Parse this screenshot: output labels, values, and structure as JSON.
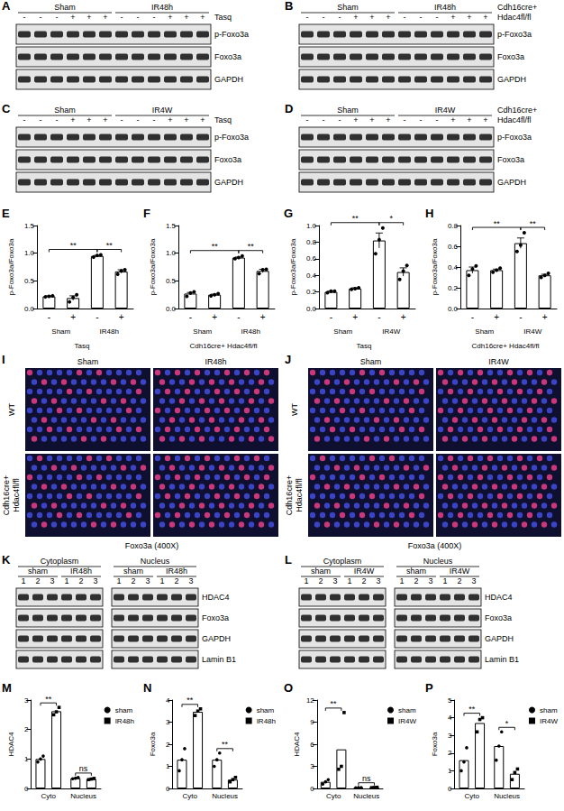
{
  "panels": [
    {
      "panel": "A",
      "type": "blot",
      "groups": [
        "Sham",
        "IR48h"
      ],
      "signs": [
        "-",
        "-",
        "-",
        "+",
        "+",
        "+",
        "-",
        "-",
        "-",
        "+",
        "+",
        "+"
      ],
      "treatment": "Tasq",
      "bands": [
        "p-Foxo3a",
        "Foxo3a",
        "GAPDH"
      ]
    },
    {
      "panel": "B",
      "type": "blot",
      "groups": [
        "Sham",
        "IR48h"
      ],
      "signs": [
        "-",
        "-",
        "-",
        "+",
        "+",
        "+",
        "-",
        "-",
        "-",
        "+",
        "+",
        "+"
      ],
      "treatment": "Cdh16cre+ Hdac4fl/fl",
      "bands": [
        "p-Foxo3a",
        "Foxo3a",
        "GAPDH"
      ]
    },
    {
      "panel": "C",
      "type": "blot",
      "groups": [
        "Sham",
        "IR4W"
      ],
      "signs": [
        "-",
        "-",
        "-",
        "+",
        "+",
        "+",
        "-",
        "-",
        "-",
        "+",
        "+",
        "+"
      ],
      "treatment": "Tasq",
      "bands": [
        "p-Foxo3a",
        "Foxo3a",
        "GAPDH"
      ]
    },
    {
      "panel": "D",
      "type": "blot",
      "groups": [
        "Sham",
        "IR4W"
      ],
      "signs": [
        "-",
        "-",
        "-",
        "+",
        "+",
        "+",
        "-",
        "-",
        "-",
        "+",
        "+",
        "+"
      ],
      "treatment": "Cdh16cre+ Hdac4fl/fl",
      "bands": [
        "p-Foxo3a",
        "Foxo3a",
        "GAPDH"
      ]
    },
    {
      "panel": "I",
      "type": "image_grid",
      "columns": [
        "Sham",
        "IR48h"
      ],
      "rows": [
        "WT",
        "Cdh16cre+ Hdac4fl/fl"
      ],
      "caption": "Foxo3a (400X)"
    },
    {
      "panel": "J",
      "type": "image_grid",
      "columns": [
        "Sham",
        "IR4W"
      ],
      "rows": [
        "WT",
        "Cdh16cre+ Hdac4fl/fl"
      ],
      "caption": "Foxo3a (400X)"
    },
    {
      "panel": "K",
      "type": "blot",
      "compartments": [
        "Cytoplasm",
        "Nucleus"
      ],
      "groups": [
        "sham",
        "IR48h",
        "sham",
        "IR48h"
      ],
      "lanes": [
        1,
        2,
        3,
        1,
        2,
        3,
        1,
        2,
        3,
        1,
        2,
        3
      ],
      "bands": [
        "HDAC4",
        "Foxo3a",
        "GAPDH",
        "Lamin B1"
      ]
    },
    {
      "panel": "L",
      "type": "blot",
      "compartments": [
        "Cytoplasm",
        "Nucleus"
      ],
      "groups": [
        "sham",
        "IR4W",
        "sham",
        "IR4W"
      ],
      "lanes": [
        1,
        2,
        3,
        1,
        2,
        3,
        1,
        2,
        3,
        1,
        2,
        3
      ],
      "bands": [
        "HDAC4",
        "Foxo3a",
        "GAPDH",
        "Lamin B1"
      ]
    }
  ],
  "chart_data": [
    {
      "panel": "E",
      "type": "bar",
      "ylabel": "p-Foxo3a/Foxo3a",
      "categories": [
        "-",
        "+",
        "-",
        "+"
      ],
      "groups": [
        "Sham",
        "IR48h"
      ],
      "treatment": "Tasq",
      "values": [
        0.22,
        0.19,
        0.95,
        0.67
      ],
      "errors": [
        0.01,
        0.04,
        0.01,
        0.03
      ],
      "points": [
        [
          0.21,
          0.22,
          0.23
        ],
        [
          0.12,
          0.2,
          0.25
        ],
        [
          0.93,
          0.96,
          0.97
        ],
        [
          0.62,
          0.68,
          0.7
        ]
      ],
      "marker": "circle",
      "color": "#ffffff",
      "ylim": [
        0,
        1.5
      ],
      "yticks": [
        {
          "value": 0,
          "label": "0.0"
        },
        {
          "value": 0.5,
          "label": "0.5"
        },
        {
          "value": 1,
          "label": "1.0"
        },
        {
          "value": 1.5,
          "label": "1.5"
        }
      ],
      "significance": [
        {
          "from": 0,
          "to": 2,
          "label": "**"
        },
        {
          "from": 2,
          "to": 3,
          "label": "**"
        }
      ],
      "grid": false
    },
    {
      "panel": "F",
      "type": "bar",
      "ylabel": "p-Foxo3a/Foxo3a",
      "categories": [
        "-",
        "+",
        "-",
        "+"
      ],
      "groups": [
        "Sham",
        "IR48h"
      ],
      "treatment": "Cdh16cre+ Hdac4fl/fl",
      "values": [
        0.27,
        0.25,
        0.92,
        0.68
      ],
      "errors": [
        0.02,
        0.01,
        0.01,
        0.03
      ],
      "points": [
        [
          0.22,
          0.28,
          0.3
        ],
        [
          0.23,
          0.25,
          0.27
        ],
        [
          0.9,
          0.92,
          0.95
        ],
        [
          0.63,
          0.7,
          0.71
        ]
      ],
      "marker": "circle",
      "color": "#ffffff",
      "ylim": [
        0,
        1.5
      ],
      "yticks": [
        {
          "value": 0,
          "label": "0.0"
        },
        {
          "value": 0.5,
          "label": "0.5"
        },
        {
          "value": 1,
          "label": "1.0"
        },
        {
          "value": 1.5,
          "label": "1.5"
        }
      ],
      "significance": [
        {
          "from": 0,
          "to": 2,
          "label": "**"
        },
        {
          "from": 2,
          "to": 3,
          "label": "**"
        }
      ],
      "grid": false
    },
    {
      "panel": "G",
      "type": "bar",
      "ylabel": "p-Foxo3a/Foxo3a",
      "categories": [
        "-",
        "+",
        "-",
        "+"
      ],
      "groups": [
        "Sham",
        "IR4W"
      ],
      "treatment": "Tasq",
      "values": [
        0.2,
        0.24,
        0.82,
        0.44
      ],
      "errors": [
        0.01,
        0.01,
        0.09,
        0.05
      ],
      "points": [
        [
          0.19,
          0.21,
          0.21
        ],
        [
          0.23,
          0.24,
          0.25
        ],
        [
          0.66,
          0.83,
          0.97
        ],
        [
          0.35,
          0.45,
          0.52
        ]
      ],
      "marker": "circle",
      "color": "#ffffff",
      "ylim": [
        0,
        1
      ],
      "yticks": [
        {
          "value": 0,
          "label": "0.0"
        },
        {
          "value": 0.2,
          "label": "0.2"
        },
        {
          "value": 0.4,
          "label": "0.4"
        },
        {
          "value": 0.6,
          "label": "0.6"
        },
        {
          "value": 0.8,
          "label": "0.8"
        },
        {
          "value": 1,
          "label": "1.0"
        }
      ],
      "significance": [
        {
          "from": 0,
          "to": 2,
          "label": "**"
        },
        {
          "from": 2,
          "to": 3,
          "label": "*"
        }
      ],
      "grid": false
    },
    {
      "panel": "H",
      "type": "bar",
      "ylabel": "p-Foxo3a/Foxo3a",
      "categories": [
        "-",
        "+",
        "-",
        "+"
      ],
      "groups": [
        "Sham",
        "IR4W"
      ],
      "treatment": "Cdh16cre+ Hdac4fl/fl",
      "values": [
        0.37,
        0.37,
        0.63,
        0.32
      ],
      "errors": [
        0.03,
        0.01,
        0.05,
        0.01
      ],
      "points": [
        [
          0.32,
          0.38,
          0.41
        ],
        [
          0.35,
          0.37,
          0.39
        ],
        [
          0.55,
          0.61,
          0.73
        ],
        [
          0.3,
          0.32,
          0.34
        ]
      ],
      "marker": "circle",
      "color": "#ffffff",
      "ylim": [
        0,
        0.8
      ],
      "yticks": [
        {
          "value": 0,
          "label": "0.0"
        },
        {
          "value": 0.2,
          "label": "0.2"
        },
        {
          "value": 0.4,
          "label": "0.4"
        },
        {
          "value": 0.6,
          "label": "0.6"
        },
        {
          "value": 0.8,
          "label": "0.8"
        }
      ],
      "significance": [
        {
          "from": 0,
          "to": 2,
          "label": "**"
        },
        {
          "from": 2,
          "to": 3,
          "label": "**"
        }
      ],
      "grid": false
    },
    {
      "panel": "M",
      "type": "bar",
      "ylabel": "HDAC4",
      "categories": [
        "Cyto",
        "Nucleus"
      ],
      "series": [
        {
          "name": "sham",
          "color": "#ffffff",
          "marker": "circle",
          "values": [
            1.0,
            0.35
          ],
          "points": [
            [
              0.9,
              1.0,
              1.1
            ],
            [
              0.33,
              0.35,
              0.37
            ]
          ]
        },
        {
          "name": "IR48h",
          "color": "#ffffff",
          "marker": "rect",
          "values": [
            2.62,
            0.32
          ],
          "points": [
            [
              2.5,
              2.6,
              2.75
            ],
            [
              0.3,
              0.32,
              0.34
            ]
          ]
        }
      ],
      "ylim": [
        0,
        3
      ],
      "yticks": [
        0,
        1,
        2,
        3
      ],
      "legend": "right",
      "significance": [
        {
          "category": 0,
          "label": "**"
        },
        {
          "category": 1,
          "label": "ns"
        }
      ],
      "grid": false
    },
    {
      "panel": "N",
      "type": "bar",
      "ylabel": "Foxo3a",
      "categories": [
        "Cyto",
        "Nucleus"
      ],
      "series": [
        {
          "name": "sham",
          "color": "#ffffff",
          "marker": "circle",
          "values": [
            1.3,
            1.3
          ],
          "points": [
            [
              0.8,
              1.3,
              1.8
            ],
            [
              1.0,
              1.3,
              1.6
            ]
          ]
        },
        {
          "name": "IR48h",
          "color": "#ffffff",
          "marker": "rect",
          "values": [
            3.47,
            0.4
          ],
          "points": [
            [
              3.3,
              3.5,
              3.6
            ],
            [
              0.3,
              0.4,
              0.5
            ]
          ]
        }
      ],
      "ylim": [
        0,
        4
      ],
      "yticks": [
        0,
        1,
        2,
        3,
        4
      ],
      "legend": "right",
      "significance": [
        {
          "category": 0,
          "label": "**"
        },
        {
          "category": 1,
          "label": "**"
        }
      ],
      "grid": false
    },
    {
      "panel": "O",
      "type": "bar",
      "ylabel": "HDAC4",
      "categories": [
        "Cyto",
        "Nucleus"
      ],
      "series": [
        {
          "name": "sham",
          "color": "#ffffff",
          "marker": "circle",
          "values": [
            0.9,
            0.1
          ],
          "points": [
            [
              0.6,
              0.9,
              1.2
            ],
            [
              0.08,
              0.1,
              0.12
            ]
          ]
        },
        {
          "name": "IR4W",
          "color": "#ffffff",
          "marker": "rect",
          "values": [
            5.3,
            0.13
          ],
          "points": [
            [
              2.6,
              3.0,
              10.3
            ],
            [
              0.1,
              0.13,
              0.16
            ]
          ]
        }
      ],
      "ylim": [
        0,
        12
      ],
      "yticks": [
        0,
        3,
        6,
        9,
        12
      ],
      "legend": "right",
      "significance": [
        {
          "category": 0,
          "label": "**"
        },
        {
          "category": 1,
          "label": "ns"
        }
      ],
      "grid": false
    },
    {
      "panel": "P",
      "type": "bar",
      "ylabel": "Foxo3a",
      "categories": [
        "Cyto",
        "Nucleus"
      ],
      "series": [
        {
          "name": "sham",
          "color": "#ffffff",
          "marker": "circle",
          "values": [
            1.6,
            2.4
          ],
          "points": [
            [
              1.0,
              1.5,
              2.3
            ],
            [
              1.6,
              2.4,
              3.2
            ]
          ]
        },
        {
          "name": "IR4W",
          "color": "#ffffff",
          "marker": "rect",
          "values": [
            3.7,
            0.83
          ],
          "points": [
            [
              3.2,
              3.9,
              4.0
            ],
            [
              0.5,
              0.9,
              1.1
            ]
          ]
        }
      ],
      "ylim": [
        0,
        5
      ],
      "yticks": [
        0,
        1,
        2,
        3,
        4,
        5
      ],
      "legend": "right",
      "significance": [
        {
          "category": 0,
          "label": "**"
        },
        {
          "category": 1,
          "label": "*"
        }
      ],
      "grid": false
    }
  ]
}
